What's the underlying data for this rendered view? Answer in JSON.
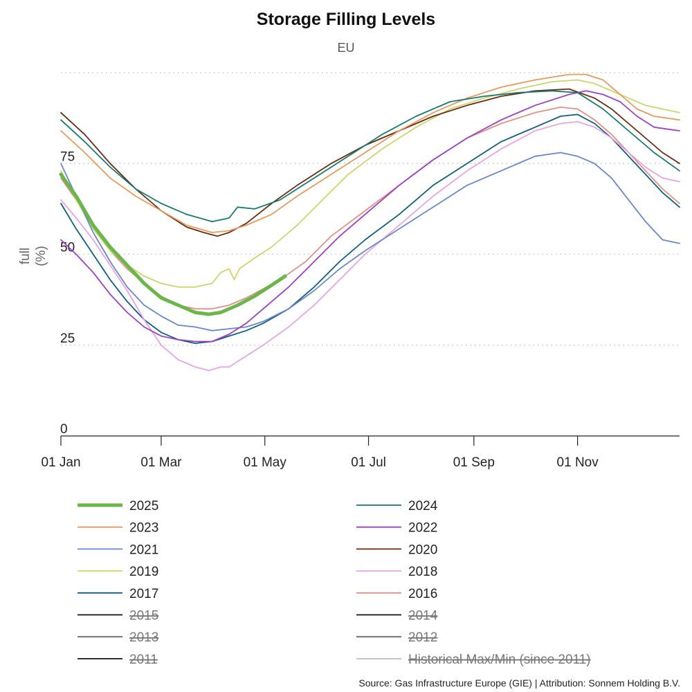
{
  "chart_data": {
    "type": "line",
    "title": "Storage Filling Levels",
    "subtitle": "EU",
    "ylabel_line1": "full",
    "ylabel_line2": "(%)",
    "xlabel": "",
    "x_unit": "day of year",
    "xlim": [
      1,
      365
    ],
    "ylim": [
      0,
      100
    ],
    "y_ticks": [
      0,
      25,
      50,
      75
    ],
    "y_gridlines": [
      25,
      50,
      75,
      100
    ],
    "x_ticks": [
      {
        "label": "01 Jan",
        "day": 1
      },
      {
        "label": "01 Mar",
        "day": 60
      },
      {
        "label": "01 May",
        "day": 121
      },
      {
        "label": "01 Jul",
        "day": 182
      },
      {
        "label": "01 Sep",
        "day": 244
      },
      {
        "label": "01 Nov",
        "day": 305
      }
    ],
    "legend_position": "bottom",
    "series": [
      {
        "name": "2025",
        "color": "#6ab64a",
        "width": 5,
        "hidden": false,
        "points": [
          [
            1,
            72
          ],
          [
            10,
            66
          ],
          [
            20,
            58
          ],
          [
            30,
            52
          ],
          [
            40,
            47
          ],
          [
            50,
            42
          ],
          [
            60,
            38
          ],
          [
            70,
            36
          ],
          [
            80,
            34
          ],
          [
            88,
            33.5
          ],
          [
            95,
            34
          ],
          [
            105,
            36
          ],
          [
            115,
            38.5
          ],
          [
            125,
            41.5
          ],
          [
            133,
            44
          ]
        ]
      },
      {
        "name": "2024",
        "color": "#157a70",
        "width": 1.8,
        "hidden": false,
        "points": [
          [
            1,
            87
          ],
          [
            15,
            81
          ],
          [
            30,
            74
          ],
          [
            45,
            68
          ],
          [
            60,
            64
          ],
          [
            75,
            61
          ],
          [
            90,
            59
          ],
          [
            100,
            60
          ],
          [
            105,
            63
          ],
          [
            115,
            62.5
          ],
          [
            130,
            65
          ],
          [
            150,
            71
          ],
          [
            170,
            77
          ],
          [
            190,
            83
          ],
          [
            210,
            88
          ],
          [
            230,
            92
          ],
          [
            250,
            93.5
          ],
          [
            270,
            94.5
          ],
          [
            290,
            95
          ],
          [
            305,
            94.5
          ],
          [
            320,
            90
          ],
          [
            335,
            84
          ],
          [
            350,
            78
          ],
          [
            365,
            73
          ]
        ]
      },
      {
        "name": "2023",
        "color": "#e79a5a",
        "width": 1.8,
        "hidden": false,
        "points": [
          [
            1,
            84
          ],
          [
            15,
            78
          ],
          [
            30,
            71
          ],
          [
            45,
            66
          ],
          [
            60,
            62
          ],
          [
            75,
            58
          ],
          [
            90,
            56
          ],
          [
            100,
            56.5
          ],
          [
            110,
            58
          ],
          [
            125,
            61
          ],
          [
            140,
            66
          ],
          [
            160,
            72
          ],
          [
            180,
            78
          ],
          [
            200,
            84
          ],
          [
            220,
            89
          ],
          [
            240,
            93
          ],
          [
            260,
            96
          ],
          [
            280,
            98
          ],
          [
            300,
            99.5
          ],
          [
            310,
            99.5
          ],
          [
            320,
            98
          ],
          [
            330,
            94
          ],
          [
            340,
            90
          ],
          [
            350,
            88
          ],
          [
            365,
            87
          ]
        ]
      },
      {
        "name": "2022",
        "color": "#9b3fc5",
        "width": 1.8,
        "hidden": false,
        "points": [
          [
            1,
            54
          ],
          [
            10,
            50
          ],
          [
            20,
            45
          ],
          [
            30,
            39
          ],
          [
            40,
            34
          ],
          [
            50,
            30
          ],
          [
            60,
            27.5
          ],
          [
            70,
            26.5
          ],
          [
            80,
            26
          ],
          [
            90,
            26
          ],
          [
            100,
            28
          ],
          [
            110,
            31
          ],
          [
            120,
            35
          ],
          [
            135,
            41
          ],
          [
            150,
            48
          ],
          [
            165,
            55
          ],
          [
            180,
            61
          ],
          [
            200,
            69
          ],
          [
            220,
            76
          ],
          [
            240,
            82
          ],
          [
            260,
            87
          ],
          [
            280,
            91
          ],
          [
            300,
            94
          ],
          [
            310,
            95
          ],
          [
            320,
            94
          ],
          [
            330,
            92
          ],
          [
            340,
            88
          ],
          [
            350,
            85
          ],
          [
            365,
            84
          ]
        ]
      },
      {
        "name": "2021",
        "color": "#6a86cc",
        "width": 1.8,
        "hidden": false,
        "points": [
          [
            1,
            75
          ],
          [
            10,
            66
          ],
          [
            20,
            56
          ],
          [
            30,
            48
          ],
          [
            40,
            41
          ],
          [
            50,
            36
          ],
          [
            60,
            33
          ],
          [
            70,
            30.5
          ],
          [
            80,
            30
          ],
          [
            90,
            29
          ],
          [
            100,
            29.5
          ],
          [
            110,
            30
          ],
          [
            120,
            31.5
          ],
          [
            135,
            35
          ],
          [
            150,
            40
          ],
          [
            165,
            46
          ],
          [
            180,
            51
          ],
          [
            200,
            57
          ],
          [
            220,
            63
          ],
          [
            240,
            69
          ],
          [
            260,
            73
          ],
          [
            280,
            77
          ],
          [
            295,
            78
          ],
          [
            305,
            77
          ],
          [
            315,
            75
          ],
          [
            325,
            71
          ],
          [
            335,
            65
          ],
          [
            345,
            59
          ],
          [
            355,
            54
          ],
          [
            365,
            53
          ]
        ]
      },
      {
        "name": "2020",
        "color": "#6b2a10",
        "width": 1.8,
        "hidden": false,
        "points": [
          [
            1,
            89
          ],
          [
            15,
            83
          ],
          [
            30,
            75
          ],
          [
            45,
            68
          ],
          [
            60,
            62
          ],
          [
            75,
            57.5
          ],
          [
            85,
            56
          ],
          [
            93,
            55
          ],
          [
            100,
            56
          ],
          [
            110,
            58.5
          ],
          [
            125,
            64
          ],
          [
            140,
            69
          ],
          [
            160,
            75
          ],
          [
            180,
            80
          ],
          [
            200,
            84
          ],
          [
            220,
            88
          ],
          [
            240,
            91
          ],
          [
            260,
            93.5
          ],
          [
            280,
            95
          ],
          [
            300,
            95.5
          ],
          [
            315,
            93
          ],
          [
            325,
            90
          ],
          [
            335,
            86
          ],
          [
            345,
            82
          ],
          [
            355,
            78
          ],
          [
            365,
            75
          ]
        ]
      },
      {
        "name": "2019",
        "color": "#cbd56a",
        "width": 1.8,
        "hidden": false,
        "points": [
          [
            1,
            73
          ],
          [
            10,
            65
          ],
          [
            20,
            57
          ],
          [
            30,
            51
          ],
          [
            40,
            47
          ],
          [
            50,
            44
          ],
          [
            60,
            42
          ],
          [
            70,
            41
          ],
          [
            80,
            41
          ],
          [
            90,
            42
          ],
          [
            95,
            45
          ],
          [
            100,
            46
          ],
          [
            103,
            43
          ],
          [
            106,
            46
          ],
          [
            115,
            49
          ],
          [
            125,
            52
          ],
          [
            140,
            58
          ],
          [
            155,
            65
          ],
          [
            170,
            72
          ],
          [
            190,
            79
          ],
          [
            210,
            85
          ],
          [
            230,
            90
          ],
          [
            250,
            93
          ],
          [
            270,
            95.5
          ],
          [
            290,
            97.5
          ],
          [
            305,
            98
          ],
          [
            315,
            97
          ],
          [
            325,
            95
          ],
          [
            335,
            93
          ],
          [
            345,
            91
          ],
          [
            355,
            90
          ],
          [
            365,
            89
          ]
        ]
      },
      {
        "name": "2018",
        "color": "#e8a2e6",
        "width": 1.8,
        "hidden": false,
        "points": [
          [
            1,
            65
          ],
          [
            10,
            60
          ],
          [
            20,
            54
          ],
          [
            30,
            47
          ],
          [
            40,
            40
          ],
          [
            50,
            32
          ],
          [
            60,
            25
          ],
          [
            70,
            21
          ],
          [
            80,
            19
          ],
          [
            88,
            18
          ],
          [
            95,
            19
          ],
          [
            100,
            19
          ],
          [
            110,
            22
          ],
          [
            120,
            25
          ],
          [
            135,
            30
          ],
          [
            150,
            36
          ],
          [
            165,
            43
          ],
          [
            180,
            50
          ],
          [
            200,
            58
          ],
          [
            220,
            66
          ],
          [
            240,
            73
          ],
          [
            260,
            79
          ],
          [
            280,
            84
          ],
          [
            295,
            86
          ],
          [
            305,
            86.5
          ],
          [
            315,
            85
          ],
          [
            325,
            82
          ],
          [
            335,
            78
          ],
          [
            345,
            74
          ],
          [
            355,
            71
          ],
          [
            365,
            70
          ]
        ]
      },
      {
        "name": "2017",
        "color": "#0e5f7f",
        "width": 1.8,
        "hidden": false,
        "points": [
          [
            1,
            64
          ],
          [
            10,
            57
          ],
          [
            20,
            50
          ],
          [
            30,
            43
          ],
          [
            40,
            37
          ],
          [
            50,
            32
          ],
          [
            60,
            28.5
          ],
          [
            70,
            26.5
          ],
          [
            80,
            25.5
          ],
          [
            90,
            26
          ],
          [
            100,
            27.5
          ],
          [
            110,
            29
          ],
          [
            120,
            31
          ],
          [
            135,
            35
          ],
          [
            150,
            41
          ],
          [
            165,
            48
          ],
          [
            180,
            54
          ],
          [
            200,
            61
          ],
          [
            220,
            69
          ],
          [
            240,
            75
          ],
          [
            260,
            81
          ],
          [
            280,
            85
          ],
          [
            295,
            88
          ],
          [
            305,
            88.5
          ],
          [
            315,
            86
          ],
          [
            325,
            82
          ],
          [
            335,
            77
          ],
          [
            345,
            72
          ],
          [
            355,
            67
          ],
          [
            365,
            63
          ]
        ]
      },
      {
        "name": "2016",
        "color": "#e48f86",
        "width": 1.8,
        "hidden": false,
        "points": [
          [
            1,
            71
          ],
          [
            10,
            65
          ],
          [
            20,
            58
          ],
          [
            30,
            51
          ],
          [
            40,
            46
          ],
          [
            50,
            42
          ],
          [
            60,
            38.5
          ],
          [
            70,
            36
          ],
          [
            80,
            35
          ],
          [
            90,
            35
          ],
          [
            100,
            36
          ],
          [
            110,
            38
          ],
          [
            120,
            40.5
          ],
          [
            130,
            43
          ],
          [
            145,
            48
          ],
          [
            160,
            55
          ],
          [
            180,
            62
          ],
          [
            200,
            69
          ],
          [
            220,
            76
          ],
          [
            240,
            82
          ],
          [
            260,
            86
          ],
          [
            280,
            89
          ],
          [
            295,
            90.5
          ],
          [
            305,
            90
          ],
          [
            315,
            87
          ],
          [
            325,
            83
          ],
          [
            335,
            78
          ],
          [
            345,
            73
          ],
          [
            355,
            68
          ],
          [
            365,
            64
          ]
        ]
      },
      {
        "name": "2015",
        "color": "#111111",
        "width": 1.8,
        "hidden": true,
        "points": []
      },
      {
        "name": "2014",
        "color": "#111111",
        "width": 1.8,
        "hidden": true,
        "points": []
      },
      {
        "name": "2013",
        "color": "#666666",
        "width": 1.8,
        "hidden": true,
        "points": []
      },
      {
        "name": "2012",
        "color": "#666666",
        "width": 1.8,
        "hidden": true,
        "points": []
      },
      {
        "name": "2011",
        "color": "#111111",
        "width": 1.8,
        "hidden": true,
        "points": []
      },
      {
        "name": "Historical Max/Min (since 2011)",
        "color": "#bbbbbb",
        "width": 1.8,
        "hidden": true,
        "points": []
      }
    ],
    "source": "Source: Gas Infrastructure Europe (GIE) | Attribution: Sonnem Holding B.V."
  }
}
